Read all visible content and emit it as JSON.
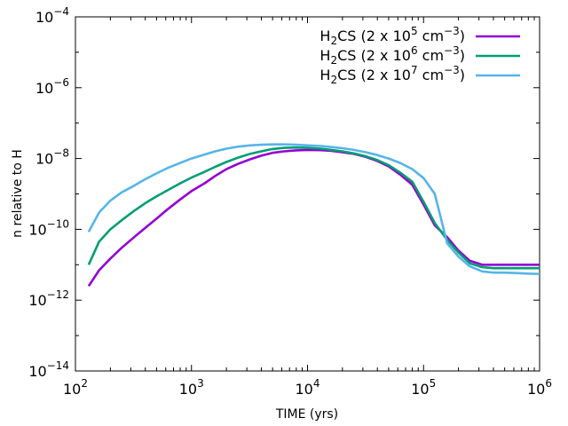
{
  "chart_data": {
    "type": "line",
    "title": "",
    "xlabel": "TIME (yrs)",
    "ylabel": "n relative to H",
    "xscale": "log",
    "yscale": "log",
    "xlim": [
      100,
      1000000
    ],
    "ylim": [
      1e-14,
      0.0001
    ],
    "x_ticks": [
      {
        "base": "10",
        "exp": "2",
        "value": 100
      },
      {
        "base": "10",
        "exp": "3",
        "value": 1000
      },
      {
        "base": "10",
        "exp": "4",
        "value": 10000
      },
      {
        "base": "10",
        "exp": "5",
        "value": 100000
      },
      {
        "base": "10",
        "exp": "6",
        "value": 1000000
      }
    ],
    "y_ticks": [
      {
        "base": "10",
        "exp": "−14",
        "value": 1e-14
      },
      {
        "base": "10",
        "exp": "−12",
        "value": 1e-12
      },
      {
        "base": "10",
        "exp": "−10",
        "value": 1e-10
      },
      {
        "base": "10",
        "exp": "−8",
        "value": 1e-08
      },
      {
        "base": "10",
        "exp": "−6",
        "value": 1e-06
      },
      {
        "base": "10",
        "exp": "−4",
        "value": 0.0001
      }
    ],
    "legend_position": "top-right",
    "series": [
      {
        "name": "H2CS (2 x 10^5 cm^-3)",
        "legend": {
          "pre": "H",
          "sub": "2",
          "mid": "CS (2 x 10",
          "sup1": "5",
          "mid2": " cm",
          "sup2": "−3",
          "post": ")"
        },
        "color": "#9400D3",
        "x": [
          130,
          160,
          200,
          250,
          320,
          400,
          500,
          630,
          800,
          1000,
          1300,
          1600,
          2000,
          2500,
          3200,
          4000,
          5000,
          6300,
          8000,
          10000,
          13000,
          16000,
          20000,
          25000,
          32000,
          40000,
          50000,
          63000,
          80000,
          100000,
          125000,
          160000,
          200000,
          250000,
          320000,
          400000,
          500000,
          630000,
          800000,
          1000000
        ],
        "y": [
          2.5e-12,
          7e-12,
          1.5e-11,
          3e-11,
          6e-11,
          1.1e-10,
          2e-10,
          3.8e-10,
          7e-10,
          1.2e-09,
          2e-09,
          3.2e-09,
          5e-09,
          7e-09,
          9.5e-09,
          1.2e-08,
          1.45e-08,
          1.6e-08,
          1.7e-08,
          1.75e-08,
          1.72e-08,
          1.65e-08,
          1.5e-08,
          1.35e-08,
          1.1e-08,
          8.5e-09,
          6e-09,
          3.5e-09,
          1.8e-09,
          5e-10,
          1.3e-10,
          6e-11,
          2.5e-11,
          1.3e-11,
          1e-11,
          1e-11,
          1e-11,
          1e-11,
          1e-11,
          1e-11
        ]
      },
      {
        "name": "H2CS (2 x 10^6 cm^-3)",
        "legend": {
          "pre": "H",
          "sub": "2",
          "mid": "CS (2 x 10",
          "sup1": "6",
          "mid2": " cm",
          "sup2": "−3",
          "post": ")"
        },
        "color": "#009E73",
        "x": [
          130,
          160,
          200,
          250,
          320,
          400,
          500,
          630,
          800,
          1000,
          1300,
          1600,
          2000,
          2500,
          3200,
          4000,
          5000,
          6300,
          8000,
          10000,
          13000,
          16000,
          20000,
          25000,
          32000,
          40000,
          50000,
          63000,
          80000,
          100000,
          125000,
          160000,
          200000,
          250000,
          320000,
          400000,
          500000,
          630000,
          800000,
          1000000
        ],
        "y": [
          1e-11,
          4.5e-11,
          1e-10,
          1.8e-10,
          3.3e-10,
          5.5e-10,
          8.5e-10,
          1.3e-09,
          2e-09,
          2.9e-09,
          4.2e-09,
          5.8e-09,
          8e-09,
          1.05e-08,
          1.35e-08,
          1.6e-08,
          1.85e-08,
          2e-08,
          2.05e-08,
          2e-08,
          1.9e-08,
          1.75e-08,
          1.6e-08,
          1.4e-08,
          1.15e-08,
          9e-09,
          6.5e-09,
          4e-09,
          2.2e-09,
          6e-10,
          1.5e-10,
          5e-11,
          2.2e-11,
          1.1e-11,
          8.5e-12,
          8e-12,
          8e-12,
          8e-12,
          8e-12,
          8e-12
        ]
      },
      {
        "name": "H2CS (2 x 10^7 cm^-3)",
        "legend": {
          "pre": "H",
          "sub": "2",
          "mid": "CS (2 x 10",
          "sup1": "7",
          "mid2": " cm",
          "sup2": "−3",
          "post": ")"
        },
        "color": "#56B4E9",
        "x": [
          130,
          160,
          200,
          250,
          320,
          400,
          500,
          630,
          800,
          1000,
          1300,
          1600,
          2000,
          2500,
          3200,
          4000,
          5000,
          6300,
          8000,
          10000,
          13000,
          16000,
          20000,
          25000,
          32000,
          40000,
          50000,
          63000,
          80000,
          100000,
          125000,
          160000,
          200000,
          250000,
          320000,
          400000,
          500000,
          630000,
          800000,
          1000000
        ],
        "y": [
          8.5e-11,
          3e-10,
          6.5e-10,
          1.1e-09,
          1.7e-09,
          2.6e-09,
          3.8e-09,
          5.5e-09,
          7.5e-09,
          1e-08,
          1.3e-08,
          1.6e-08,
          1.9e-08,
          2.15e-08,
          2.35e-08,
          2.45e-08,
          2.5e-08,
          2.5e-08,
          2.45e-08,
          2.35e-08,
          2.25e-08,
          2.1e-08,
          1.95e-08,
          1.75e-08,
          1.5e-08,
          1.25e-08,
          1e-08,
          7.5e-09,
          5e-09,
          2.8e-09,
          1e-09,
          4e-11,
          1.7e-11,
          9e-12,
          6.5e-12,
          6e-12,
          6e-12,
          5.8e-12,
          5.6e-12,
          5.5e-12
        ]
      }
    ]
  }
}
